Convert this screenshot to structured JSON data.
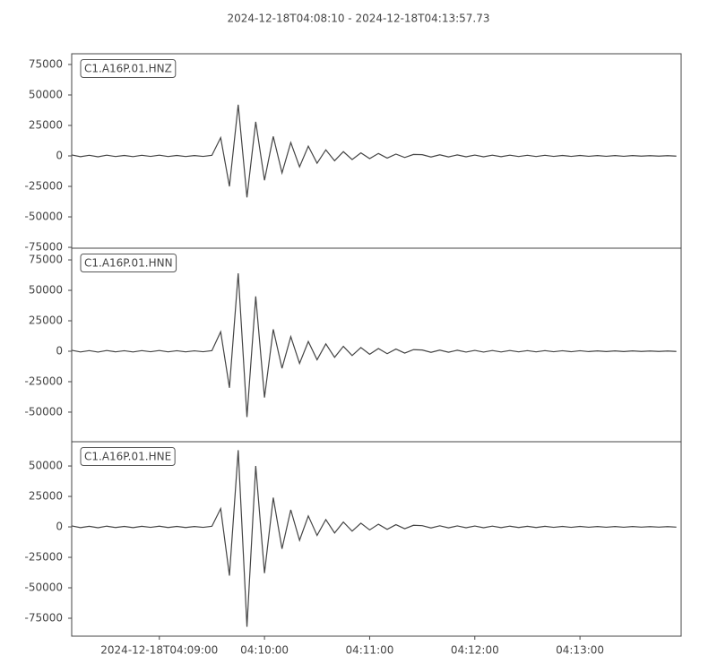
{
  "chart_data": [
    {
      "type": "line",
      "title": "2024-12-18T04:08:10  -  2024-12-18T04:13:57.73",
      "label": "C1.A16P.01.HNZ",
      "color": "#444444",
      "x": [
        0,
        5,
        10,
        15,
        20,
        25,
        30,
        35,
        40,
        45,
        50,
        55,
        60,
        65,
        70,
        75,
        80,
        85,
        90,
        95,
        100,
        105,
        110,
        115,
        120,
        125,
        130,
        135,
        140,
        145,
        150,
        155,
        160,
        165,
        170,
        175,
        180,
        185,
        190,
        195,
        200,
        205,
        210,
        215,
        220,
        225,
        230,
        235,
        240,
        245,
        250,
        255,
        260,
        265,
        270,
        275,
        280,
        285,
        290,
        295,
        300,
        305,
        310,
        315,
        320,
        325,
        330,
        335,
        340,
        345
      ],
      "values": [
        800,
        -600,
        500,
        -700,
        600,
        -500,
        400,
        -600,
        500,
        -400,
        600,
        -500,
        400,
        -500,
        300,
        -400,
        500,
        15000,
        -25000,
        42000,
        -34000,
        28000,
        -20000,
        16000,
        -14000,
        11000,
        -9000,
        8000,
        -6000,
        5000,
        -4000,
        3500,
        -3000,
        2500,
        -2200,
        2000,
        -1800,
        1500,
        -1300,
        1200,
        1000,
        -900,
        900,
        -800,
        800,
        -700,
        700,
        -700,
        600,
        -600,
        600,
        -500,
        500,
        -500,
        500,
        -400,
        400,
        -400,
        400,
        -300,
        300,
        -300,
        300,
        -300,
        300,
        -200,
        200,
        -200,
        200,
        -200
      ],
      "xlim": [
        0,
        347.73
      ],
      "ylim": [
        -75700,
        83800
      ],
      "yticks": [
        -75000,
        -50000,
        -25000,
        0,
        25000,
        50000,
        75000
      ]
    },
    {
      "type": "line",
      "label": "C1.A16P.01.HNN",
      "color": "#444444",
      "x": [
        0,
        5,
        10,
        15,
        20,
        25,
        30,
        35,
        40,
        45,
        50,
        55,
        60,
        65,
        70,
        75,
        80,
        85,
        90,
        95,
        100,
        105,
        110,
        115,
        120,
        125,
        130,
        135,
        140,
        145,
        150,
        155,
        160,
        165,
        170,
        175,
        180,
        185,
        190,
        195,
        200,
        205,
        210,
        215,
        220,
        225,
        230,
        235,
        240,
        245,
        250,
        255,
        260,
        265,
        270,
        275,
        280,
        285,
        290,
        295,
        300,
        305,
        310,
        315,
        320,
        325,
        330,
        335,
        340,
        345
      ],
      "values": [
        800,
        -600,
        500,
        -700,
        600,
        -500,
        400,
        -600,
        500,
        -400,
        600,
        -500,
        400,
        -500,
        300,
        -400,
        500,
        16000,
        -30000,
        64000,
        -54000,
        45000,
        -38000,
        18000,
        -14000,
        12000,
        -10000,
        8000,
        -7000,
        6000,
        -5000,
        4000,
        -3500,
        3000,
        -2500,
        2200,
        -2000,
        1800,
        -1500,
        1300,
        1000,
        -900,
        900,
        -800,
        800,
        -700,
        700,
        -700,
        600,
        -600,
        600,
        -500,
        500,
        -500,
        500,
        -400,
        400,
        -400,
        400,
        -300,
        300,
        -300,
        300,
        -300,
        300,
        -200,
        200,
        -200,
        200,
        -200
      ],
      "xlim": [
        0,
        347.73
      ],
      "ylim": [
        -74300,
        84600
      ],
      "yticks": [
        -50000,
        -25000,
        0,
        25000,
        50000,
        75000
      ]
    },
    {
      "type": "line",
      "label": "C1.A16P.01.HNE",
      "color": "#444444",
      "x": [
        0,
        5,
        10,
        15,
        20,
        25,
        30,
        35,
        40,
        45,
        50,
        55,
        60,
        65,
        70,
        75,
        80,
        85,
        90,
        95,
        100,
        105,
        110,
        115,
        120,
        125,
        130,
        135,
        140,
        145,
        150,
        155,
        160,
        165,
        170,
        175,
        180,
        185,
        190,
        195,
        200,
        205,
        210,
        215,
        220,
        225,
        230,
        235,
        240,
        245,
        250,
        255,
        260,
        265,
        270,
        275,
        280,
        285,
        290,
        295,
        300,
        305,
        310,
        315,
        320,
        325,
        330,
        335,
        340,
        345
      ],
      "values": [
        800,
        -600,
        500,
        -700,
        600,
        -500,
        400,
        -600,
        500,
        -400,
        600,
        -500,
        400,
        -500,
        300,
        -400,
        500,
        15000,
        -40000,
        63000,
        -82000,
        50000,
        -38000,
        24000,
        -18000,
        14000,
        -11000,
        9000,
        -7000,
        6000,
        -5000,
        4000,
        -3500,
        3000,
        -2500,
        2200,
        -2000,
        1800,
        -1500,
        1300,
        1000,
        -900,
        900,
        -800,
        800,
        -700,
        700,
        -700,
        600,
        -600,
        600,
        -500,
        500,
        -500,
        500,
        -400,
        400,
        -400,
        400,
        -300,
        300,
        -300,
        300,
        -300,
        300,
        -200,
        200,
        -200,
        200,
        -200
      ],
      "xlim": [
        0,
        347.73
      ],
      "ylim": [
        -89700,
        69900
      ],
      "yticks": [
        -75000,
        -50000,
        -25000,
        0,
        25000,
        50000
      ],
      "xticks": [
        {
          "value": 50,
          "label": "2024-12-18T04:09:00"
        },
        {
          "value": 110,
          "label": "04:10:00"
        },
        {
          "value": 170,
          "label": "04:11:00"
        },
        {
          "value": 230,
          "label": "04:12:00"
        },
        {
          "value": 290,
          "label": "04:13:00"
        }
      ]
    }
  ]
}
